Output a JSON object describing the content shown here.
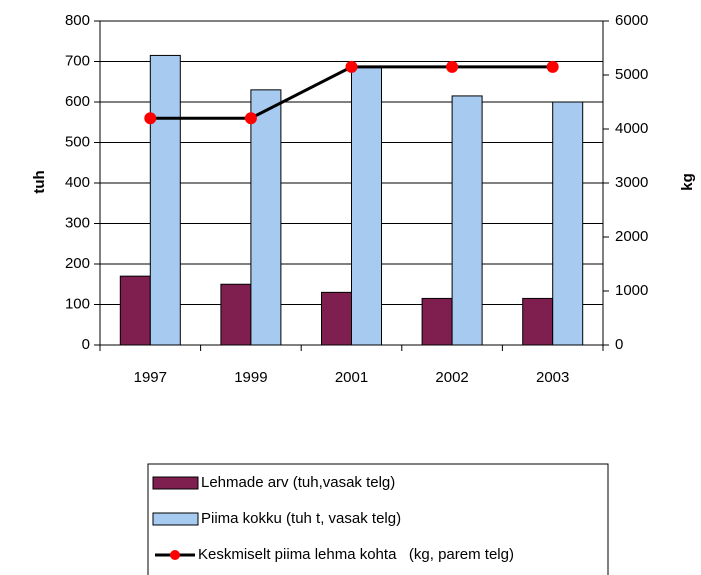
{
  "chart_data": {
    "type": "bar",
    "categories": [
      "1997",
      "1999",
      "2001",
      "2002",
      "2003"
    ],
    "ylabel": "tuh",
    "y2label": "kg",
    "ylim": [
      0,
      800
    ],
    "yticks": [
      0,
      100,
      200,
      300,
      400,
      500,
      600,
      700,
      800
    ],
    "y2lim": [
      0,
      6000
    ],
    "y2ticks": [
      0,
      1000,
      2000,
      3000,
      4000,
      5000,
      6000
    ],
    "grid": true,
    "legend": "bottom",
    "series": [
      {
        "name": "Lehmade arv (tuh,vasak telg)",
        "color": "#7f1f4f",
        "values": [
          170,
          150,
          130,
          115,
          115
        ]
      },
      {
        "name": "Piima kokku (tuh t, vasak telg)",
        "color": "#a6caf0",
        "values": [
          715,
          630,
          685,
          615,
          600
        ]
      },
      {
        "name": "Keskmiselt piima lehma kohta   (kg, parem telg)",
        "color": "#ff0000",
        "line_color": "#000000",
        "type": "line",
        "axis": "y2",
        "values": [
          4200,
          4200,
          5150,
          5150,
          5150
        ]
      }
    ]
  }
}
